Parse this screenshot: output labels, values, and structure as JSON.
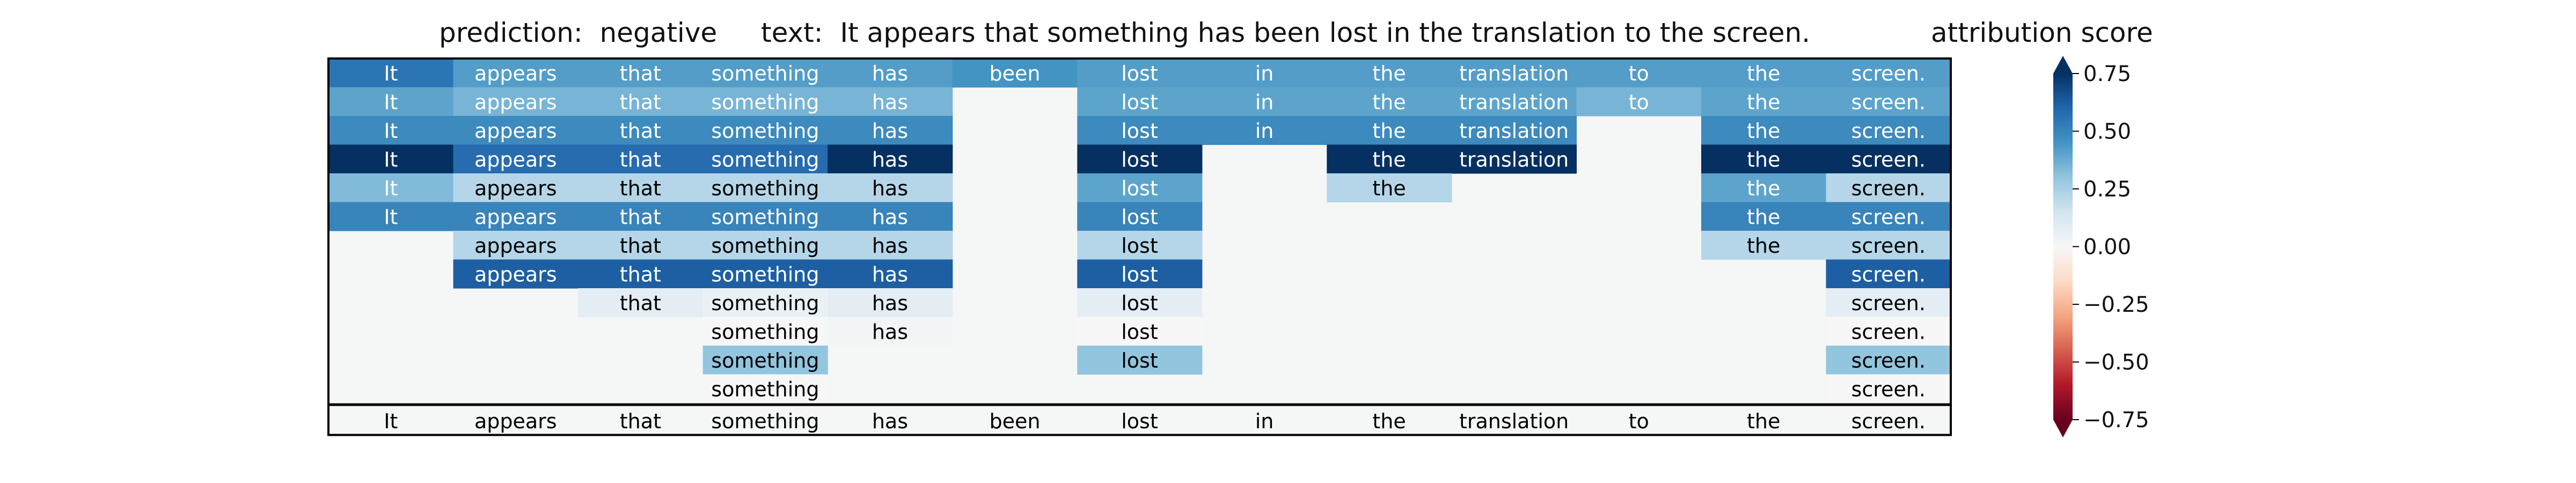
{
  "header": {
    "prediction_label": "prediction:  negative",
    "text_label": "text:  It appears that something has been lost in the translation to the screen."
  },
  "colorbar": {
    "title": "attribution score",
    "ticks": [
      "0.75",
      "0.50",
      "0.25",
      "0.00",
      "−0.25",
      "−0.50",
      "−0.75"
    ],
    "tick_values": [
      0.75,
      0.5,
      0.25,
      0.0,
      -0.25,
      -0.5,
      -0.75
    ],
    "range": [
      -0.75,
      0.75
    ],
    "colormap": "RdBu",
    "extend": "both"
  },
  "chart_data": {
    "type": "heatmap",
    "title": "",
    "xlabel": "",
    "ylabel": "",
    "columns": [
      "It",
      "appears",
      "that",
      "something",
      "has",
      "been",
      "lost",
      "in",
      "the",
      "translation",
      "to",
      "the",
      "screen."
    ],
    "reference_row": [
      "It",
      "appears",
      "that",
      "something",
      "has",
      "been",
      "lost",
      "in",
      "the",
      "translation",
      "to",
      "the",
      "screen."
    ],
    "vmin": -0.75,
    "vmax": 0.75,
    "colors": {
      "background_cell": "#f5f6f6",
      "text_on_dark": "#ffffff",
      "text_on_light": "#000000",
      "frame": "#000000"
    },
    "rows": [
      [
        0.55,
        0.42,
        0.42,
        0.42,
        0.42,
        0.45,
        0.42,
        0.42,
        0.42,
        0.42,
        0.42,
        0.42,
        0.42
      ],
      [
        0.4,
        0.35,
        0.35,
        0.35,
        0.35,
        null,
        0.4,
        0.4,
        0.4,
        0.4,
        0.35,
        0.4,
        0.4
      ],
      [
        0.48,
        0.48,
        0.48,
        0.48,
        0.48,
        null,
        0.48,
        0.48,
        0.48,
        0.48,
        null,
        0.48,
        0.48
      ],
      [
        0.8,
        0.58,
        0.58,
        0.58,
        0.78,
        null,
        0.8,
        null,
        0.78,
        0.8,
        null,
        0.78,
        0.8
      ],
      [
        0.33,
        0.22,
        0.22,
        0.22,
        0.22,
        null,
        0.4,
        null,
        0.22,
        null,
        null,
        0.4,
        0.22
      ],
      [
        0.5,
        0.5,
        0.5,
        0.5,
        0.5,
        null,
        0.5,
        null,
        null,
        null,
        null,
        0.5,
        0.5
      ],
      [
        null,
        0.22,
        0.22,
        0.22,
        0.22,
        null,
        0.22,
        null,
        null,
        null,
        null,
        0.22,
        0.22
      ],
      [
        null,
        0.62,
        0.62,
        0.62,
        0.62,
        null,
        0.62,
        null,
        null,
        null,
        null,
        null,
        0.62
      ],
      [
        null,
        null,
        0.08,
        0.05,
        0.08,
        null,
        0.08,
        null,
        null,
        null,
        null,
        null,
        0.08
      ],
      [
        null,
        null,
        null,
        0.0,
        0.02,
        null,
        0.0,
        null,
        null,
        null,
        null,
        null,
        0.0
      ],
      [
        null,
        null,
        null,
        0.3,
        null,
        null,
        0.3,
        null,
        null,
        null,
        null,
        null,
        0.3
      ],
      [
        null,
        null,
        null,
        0.0,
        null,
        null,
        null,
        null,
        null,
        null,
        null,
        null,
        0.0
      ]
    ]
  }
}
